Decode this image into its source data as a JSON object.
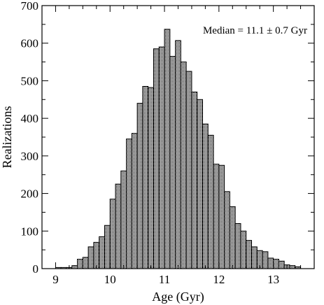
{
  "chart_data": {
    "type": "bar",
    "xlabel": "Age (Gyr)",
    "ylabel": "Realizations",
    "annotation": "Median = 11.1 ± 0.7 Gyr",
    "xlim": [
      8.75,
      13.75
    ],
    "ylim": [
      0,
      700
    ],
    "xticks": [
      9,
      10,
      11,
      12,
      13
    ],
    "xtick_labels": [
      "9",
      "10",
      "11",
      "12",
      "13"
    ],
    "yticks": [
      0,
      100,
      200,
      300,
      400,
      500,
      600,
      700
    ],
    "ytick_labels": [
      "0",
      "100",
      "200",
      "300",
      "400",
      "500",
      "600",
      "700"
    ],
    "bin_width": 0.1,
    "bin_starts": [
      9.0,
      9.1,
      9.2,
      9.3,
      9.4,
      9.5,
      9.6,
      9.7,
      9.8,
      9.9,
      10.0,
      10.1,
      10.2,
      10.3,
      10.4,
      10.5,
      10.6,
      10.7,
      10.8,
      10.9,
      11.0,
      11.1,
      11.2,
      11.3,
      11.4,
      11.5,
      11.6,
      11.7,
      11.8,
      11.9,
      12.0,
      12.1,
      12.2,
      12.3,
      12.4,
      12.5,
      12.6,
      12.7,
      12.8,
      12.9,
      13.0,
      13.1,
      13.2,
      13.3,
      13.4
    ],
    "values": [
      3,
      3,
      3,
      8,
      25,
      30,
      58,
      70,
      85,
      115,
      185,
      225,
      260,
      345,
      360,
      440,
      485,
      482,
      585,
      590,
      637,
      565,
      607,
      550,
      525,
      470,
      450,
      385,
      355,
      278,
      275,
      205,
      165,
      120,
      100,
      75,
      58,
      48,
      45,
      28,
      25,
      20,
      10,
      8,
      5
    ],
    "grid": false,
    "bar_fill": "#c8c8c8",
    "bar_stroke": "#000000"
  }
}
